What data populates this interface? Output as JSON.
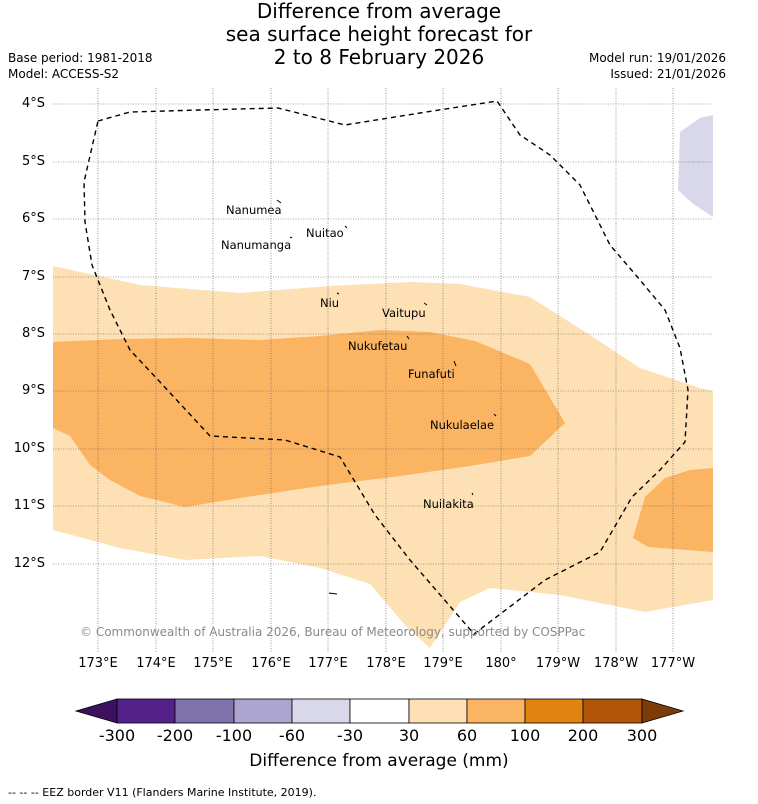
{
  "title": {
    "line1": "Difference from average",
    "line2": "sea surface height forecast for",
    "line3": "2 to 8 February 2026"
  },
  "meta": {
    "base_period": "Base period: 1981-2018",
    "model": "Model: ACCESS-S2",
    "model_run": "Model run: 19/01/2026",
    "issued": "Issued: 21/01/2026"
  },
  "axes": {
    "latitudes": [
      "4°S",
      "5°S",
      "6°S",
      "7°S",
      "8°S",
      "9°S",
      "10°S",
      "11°S",
      "12°S"
    ],
    "longitudes": [
      "173°E",
      "174°E",
      "175°E",
      "176°E",
      "177°E",
      "178°E",
      "179°E",
      "180°",
      "179°W",
      "178°W",
      "177°W"
    ]
  },
  "places": [
    {
      "name": "Nanumea"
    },
    {
      "name": "Nuitao"
    },
    {
      "name": "Nanumanga"
    },
    {
      "name": "Niu"
    },
    {
      "name": "Vaitupu"
    },
    {
      "name": "Nukufetau"
    },
    {
      "name": "Funafuti"
    },
    {
      "name": "Nukulaelae"
    },
    {
      "name": "Nuilakita"
    }
  ],
  "copyright": "© Commonwealth of Australia 2026, Bureau of Meteorology, supported by COSPPac",
  "colorbar": {
    "ticks": [
      "-300",
      "-200",
      "-100",
      "-60",
      "-30",
      "30",
      "60",
      "100",
      "200",
      "300"
    ],
    "colors": [
      "#3d1060",
      "#54208a",
      "#7f72ad",
      "#aba5cf",
      "#d8d8ea",
      "#ffffff",
      "#fee0b5",
      "#fbb462",
      "#e2820f",
      "#b25506",
      "#7d3b08"
    ],
    "title": "Difference from average (mm)"
  },
  "footer": "--  --  -- EEZ border V11 (Flanders Marine Institute, 2019)."
}
